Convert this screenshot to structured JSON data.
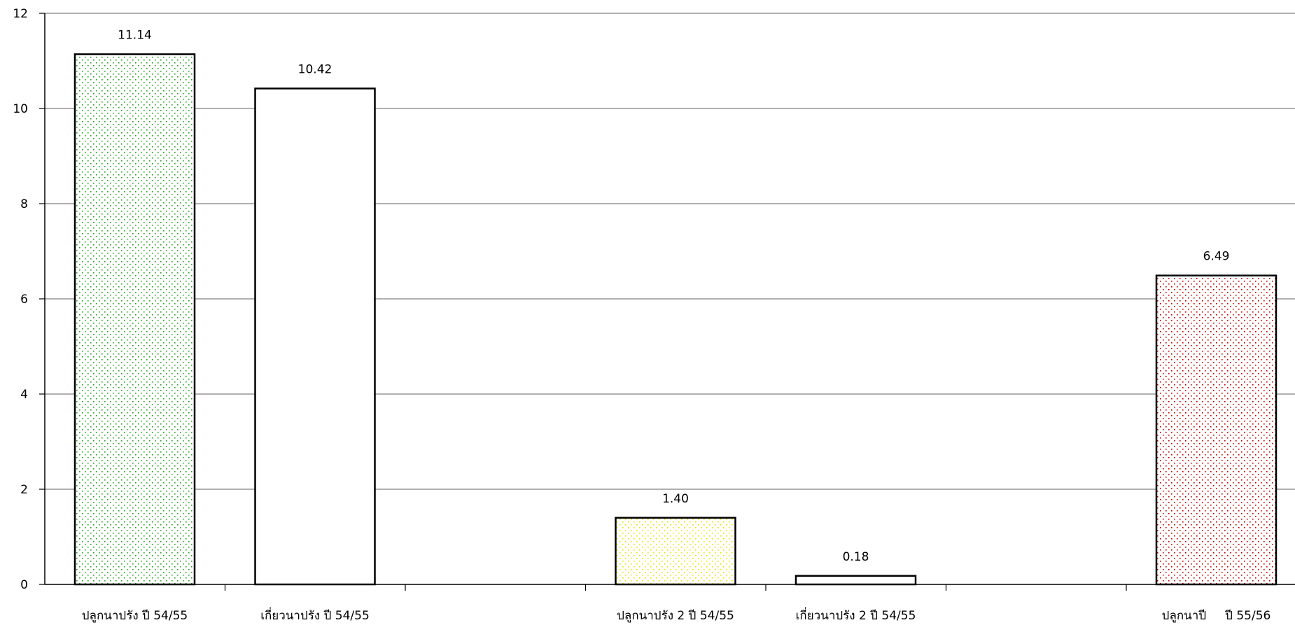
{
  "chart_data": {
    "type": "bar",
    "categories": [
      "ปลูกนาปรัง ปี 54/55",
      "เกี่ยวนาปรัง ปี 54/55",
      "",
      "ปลูกนาปรัง 2 ปี 54/55",
      "เกี่ยวนาปรัง 2 ปี 54/55",
      "",
      "ปลูกนาปี     ปี 55/56"
    ],
    "values": [
      11.14,
      10.42,
      null,
      1.4,
      0.18,
      null,
      6.49
    ],
    "value_labels": [
      "11.14",
      "10.42",
      "",
      "1.40",
      "0.18",
      "",
      "6.49"
    ],
    "bar_styles": [
      {
        "pattern": "dots",
        "color": "#2ca02c"
      },
      {
        "pattern": "none",
        "color": "#000000"
      },
      null,
      {
        "pattern": "dots",
        "color": "#e6e600"
      },
      {
        "pattern": "none",
        "color": "#000000"
      },
      null,
      {
        "pattern": "dots",
        "color": "#c00000"
      }
    ],
    "y_ticks": [
      "0",
      "2",
      "4",
      "6",
      "8",
      "10",
      "12"
    ],
    "ylim": [
      0,
      12
    ],
    "grid": true,
    "title": "",
    "xlabel": "",
    "ylabel": ""
  }
}
